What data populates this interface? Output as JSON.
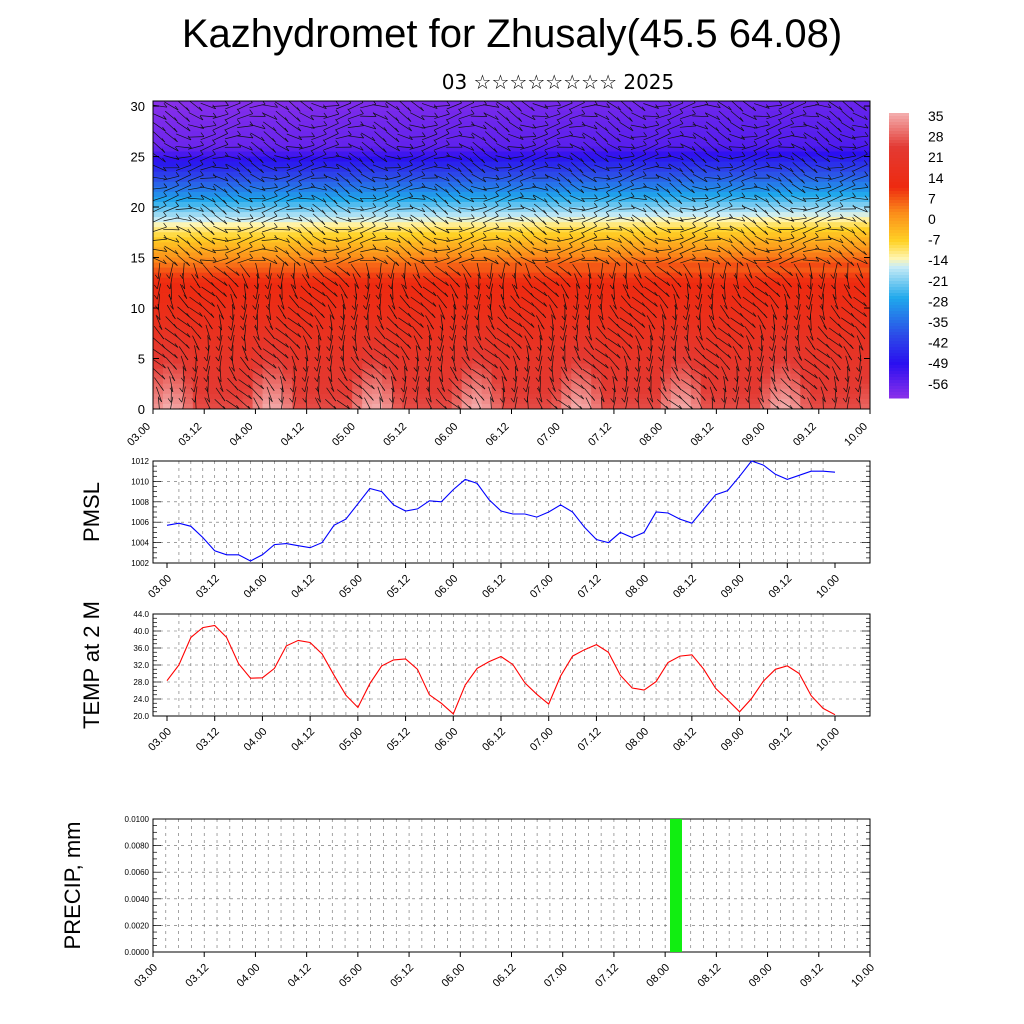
{
  "page": {
    "title": "Kazhydromet for Zhusaly(45.5 64.08)",
    "subtitle": "03 ☆☆☆☆☆☆☆☆ 2025"
  },
  "chart_data": [
    {
      "id": "cross-section",
      "type": "heatmap",
      "title": "",
      "xlabel": "",
      "ylabel": "",
      "x_tick_labels": [
        "03.00",
        "03.12",
        "04.00",
        "04.12",
        "05.00",
        "05.12",
        "06.00",
        "06.12",
        "07.00",
        "07.12",
        "08.00",
        "08.12",
        "09.00",
        "09.12",
        "10.00"
      ],
      "y_ticks": [
        0,
        5,
        10,
        15,
        20,
        25,
        30
      ],
      "ylim": [
        0,
        30.5
      ],
      "colorbar_labels": [
        "35",
        "28",
        "21",
        "14",
        "7",
        "0",
        "-7",
        "-14",
        "-21",
        "-28",
        "-35",
        "-42",
        "-49",
        "-56"
      ],
      "colorbar_values": [
        35,
        28,
        21,
        14,
        7,
        0,
        -7,
        -14,
        -21,
        -28,
        -35,
        -42,
        -49,
        -56
      ],
      "color_stops": [
        {
          "value": 40,
          "color": "#f4b0b0"
        },
        {
          "value": 28,
          "color": "#e33a33"
        },
        {
          "value": 14,
          "color": "#ee2a10"
        },
        {
          "value": 5,
          "color": "#fb8c1a"
        },
        {
          "value": -5,
          "color": "#ffd225"
        },
        {
          "value": -11,
          "color": "#fff5b0"
        },
        {
          "value": -14,
          "color": "#c9ecf6"
        },
        {
          "value": -25,
          "color": "#1fa8ec"
        },
        {
          "value": -38,
          "color": "#2c4be8"
        },
        {
          "value": -48,
          "color": "#2a0ff0"
        },
        {
          "value": -60,
          "color": "#8a30ea"
        }
      ]
    },
    {
      "id": "pmsl",
      "type": "line",
      "ylabel": "PMSL",
      "ylim": [
        1002,
        1012
      ],
      "y_tick_labels": [
        "1002",
        "1004",
        "1006",
        "1008",
        "1010",
        "1012"
      ],
      "x_tick_labels": [
        "03.00",
        "03.12",
        "04.00",
        "04.12",
        "05.00",
        "05.12",
        "06.00",
        "06.12",
        "07.00",
        "07.12",
        "08.00",
        "08.12",
        "09.00",
        "09.12",
        "10.00"
      ],
      "series": [
        {
          "color": "#0000ff",
          "values": [
            1005.7,
            1005.9,
            1005.6,
            1004.5,
            1003.2,
            1002.8,
            1002.8,
            1002.2,
            1002.8,
            1003.8,
            1003.9,
            1003.7,
            1003.5,
            1004.0,
            1005.7,
            1006.3,
            1007.8,
            1009.3,
            1009.0,
            1007.7,
            1007.1,
            1007.3,
            1008.1,
            1008.0,
            1009.2,
            1010.2,
            1009.8,
            1008.2,
            1007.1,
            1006.8,
            1006.8,
            1006.5,
            1007.0,
            1007.7,
            1007.0,
            1005.5,
            1004.3,
            1004.0,
            1005.0,
            1004.5,
            1005.0,
            1007.0,
            1006.9,
            1006.3,
            1005.9,
            1007.3,
            1008.7,
            1009.1,
            1010.5,
            1012.0,
            1011.6,
            1010.7,
            1010.2,
            1010.6,
            1011.0,
            1011.0,
            1010.9
          ]
        }
      ]
    },
    {
      "id": "temp2m",
      "type": "line",
      "ylabel": "TEMP at 2 M",
      "ylim": [
        20,
        44
      ],
      "y_tick_labels": [
        "20.0",
        "24.0",
        "28.0",
        "32.0",
        "36.0",
        "40.0",
        "44.0"
      ],
      "x_tick_labels": [
        "03.00",
        "03.12",
        "04.00",
        "04.12",
        "05.00",
        "05.12",
        "06.00",
        "06.12",
        "07.00",
        "07.12",
        "08.00",
        "08.12",
        "09.00",
        "09.12",
        "10.00"
      ],
      "series": [
        {
          "color": "#ff0000",
          "values": [
            28.3,
            32.0,
            38.5,
            40.8,
            41.3,
            38.5,
            32.3,
            28.9,
            29.0,
            31.2,
            36.5,
            37.8,
            37.3,
            34.6,
            29.6,
            24.9,
            22.0,
            27.6,
            31.8,
            33.2,
            33.4,
            31.0,
            25.0,
            23.0,
            20.5,
            27.3,
            31.2,
            32.8,
            34.0,
            32.1,
            27.8,
            25.1,
            22.8,
            29.4,
            34.1,
            35.6,
            36.8,
            35.0,
            29.6,
            26.6,
            26.1,
            28.1,
            32.6,
            34.1,
            34.4,
            31.0,
            26.5,
            23.8,
            21.0,
            24.1,
            28.2,
            31.0,
            31.8,
            30.0,
            24.8,
            21.8,
            20.3
          ]
        }
      ]
    },
    {
      "id": "precip",
      "type": "bar",
      "ylabel": "PRECIP, mm",
      "ylim": [
        0,
        0.01
      ],
      "y_tick_labels": [
        "0.0000",
        "0.0020",
        "0.0040",
        "0.0060",
        "0.0080",
        "0.0100"
      ],
      "x_tick_labels": [
        "03.00",
        "03.12",
        "04.00",
        "04.12",
        "05.00",
        "05.12",
        "06.00",
        "06.12",
        "07.00",
        "07.12",
        "08.00",
        "08.12",
        "09.00",
        "09.12",
        "10.00"
      ],
      "series": [
        {
          "color": "#11ee11",
          "values": [
            0,
            0,
            0,
            0,
            0,
            0,
            0,
            0,
            0,
            0,
            0,
            0,
            0,
            0,
            0,
            0,
            0,
            0,
            0,
            0,
            0,
            0,
            0,
            0,
            0,
            0,
            0,
            0,
            0,
            0,
            0,
            0,
            0,
            0,
            0,
            0,
            0,
            0,
            0,
            0,
            0,
            0,
            0,
            0,
            0,
            0,
            0,
            0,
            0,
            0,
            0,
            0,
            0,
            0,
            0,
            0,
            0,
            0,
            0.01,
            0,
            0,
            0,
            0,
            0,
            0,
            0,
            0,
            0,
            0,
            0,
            0,
            0,
            0,
            0,
            0,
            0,
            0,
            0,
            0,
            0,
            0,
            0,
            0,
            0,
            0,
            0,
            0,
            0,
            0,
            0,
            0,
            0,
            0,
            0,
            0,
            0,
            0,
            0,
            0,
            0,
            0,
            0,
            0,
            0,
            0,
            0,
            0,
            0,
            0,
            0,
            0,
            0,
            0,
            0,
            0,
            0,
            0,
            0,
            0,
            0,
            0,
            0,
            0,
            0,
            0,
            0,
            0,
            0,
            0,
            0,
            0,
            0,
            0,
            0,
            0,
            0,
            0,
            0,
            0,
            0,
            0,
            0,
            0,
            0,
            0,
            0,
            0,
            0,
            0,
            0,
            0,
            0,
            0,
            0,
            0,
            0,
            0,
            0,
            0,
            0,
            0,
            0,
            0,
            0,
            0,
            0,
            0,
            0,
            0,
            0,
            0,
            0,
            0
          ]
        }
      ]
    }
  ]
}
